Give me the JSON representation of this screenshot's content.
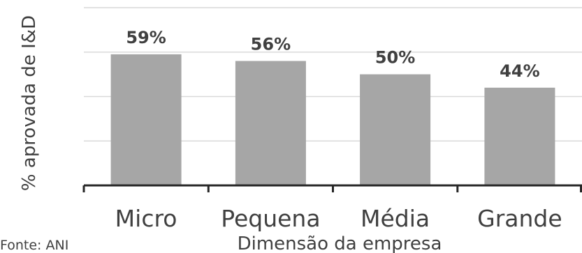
{
  "chart_data": {
    "type": "bar",
    "categories": [
      "Micro",
      "Pequena",
      "Média",
      "Grande"
    ],
    "values": [
      59,
      56,
      50,
      44
    ],
    "value_labels": [
      "59%",
      "56%",
      "50%",
      "44%"
    ],
    "xlabel": "Dimensão da empresa",
    "ylabel": "% aprovada de I&D",
    "ylim": [
      0,
      80
    ],
    "grid": true,
    "source": "Fonte: ANI",
    "bar_color": "#a6a6a6",
    "grid_color": "#d9d9d9",
    "axis_color": "#262626",
    "text_color": "#404040"
  }
}
